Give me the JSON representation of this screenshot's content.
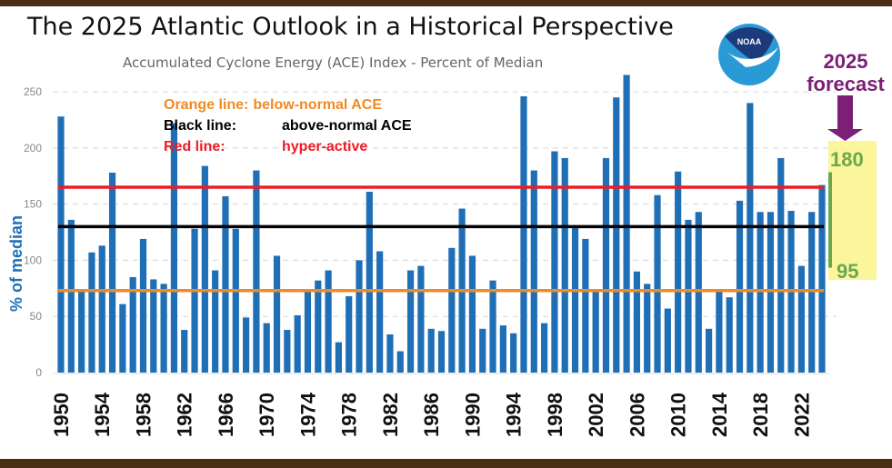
{
  "chart_data": {
    "type": "bar",
    "title": "The 2025 Atlantic Outlook in a Historical Perspective",
    "subtitle": "Accumulated Cyclone Energy (ACE) Index - Percent of Median",
    "ylabel": "% of median",
    "xlabel": "",
    "ylim": [
      0,
      250
    ],
    "yticks": [
      0,
      50,
      100,
      150,
      200,
      250
    ],
    "grid": true,
    "x": [
      1950,
      1951,
      1952,
      1953,
      1954,
      1955,
      1956,
      1957,
      1958,
      1959,
      1960,
      1961,
      1962,
      1963,
      1964,
      1965,
      1966,
      1967,
      1968,
      1969,
      1970,
      1971,
      1972,
      1973,
      1974,
      1975,
      1976,
      1977,
      1978,
      1979,
      1980,
      1981,
      1982,
      1983,
      1984,
      1985,
      1986,
      1987,
      1988,
      1989,
      1990,
      1991,
      1992,
      1993,
      1994,
      1995,
      1996,
      1997,
      1998,
      1999,
      2000,
      2001,
      2002,
      2003,
      2004,
      2005,
      2006,
      2007,
      2008,
      2009,
      2010,
      2011,
      2012,
      2013,
      2014,
      2015,
      2016,
      2017,
      2018,
      2019,
      2020,
      2021,
      2022,
      2023,
      2024
    ],
    "xtick_labels": [
      "1950",
      "1954",
      "1958",
      "1962",
      "1966",
      "1970",
      "1974",
      "1978",
      "1982",
      "1986",
      "1990",
      "1994",
      "1998",
      "2002",
      "2006",
      "2010",
      "2014",
      "2018",
      "2022"
    ],
    "values": [
      228,
      136,
      74,
      107,
      113,
      178,
      61,
      85,
      119,
      83,
      79,
      222,
      38,
      128,
      184,
      91,
      157,
      128,
      49,
      180,
      44,
      104,
      38,
      51,
      74,
      82,
      91,
      27,
      68,
      100,
      161,
      108,
      34,
      19,
      91,
      95,
      39,
      37,
      111,
      146,
      104,
      39,
      82,
      42,
      35,
      246,
      180,
      44,
      197,
      191,
      129,
      119,
      74,
      191,
      245,
      265,
      90,
      79,
      158,
      57,
      179,
      136,
      143,
      39,
      72,
      67,
      153,
      240,
      143,
      143,
      191,
      144,
      95,
      143,
      167
    ],
    "bar_color": "#1f6fb7",
    "reference_lines": [
      {
        "label": "Orange line:",
        "text": "below-normal ACE",
        "value": 73,
        "color": "#f08a24"
      },
      {
        "label": "Black line:",
        "text": "above-normal ACE",
        "value": 130,
        "color": "#000000"
      },
      {
        "label": "Red line:",
        "text": "hyper-active",
        "value": 165,
        "color": "#ee1c25"
      }
    ],
    "forecast": {
      "title_line1": "2025",
      "title_line2": "forecast",
      "low": 95,
      "high": 180,
      "low_label": "95",
      "high_label": "180",
      "title_color": "#7b1f77",
      "range_color": "#6aa84f",
      "box_color": "#fbf59b"
    },
    "logo_text": "NOAA"
  }
}
